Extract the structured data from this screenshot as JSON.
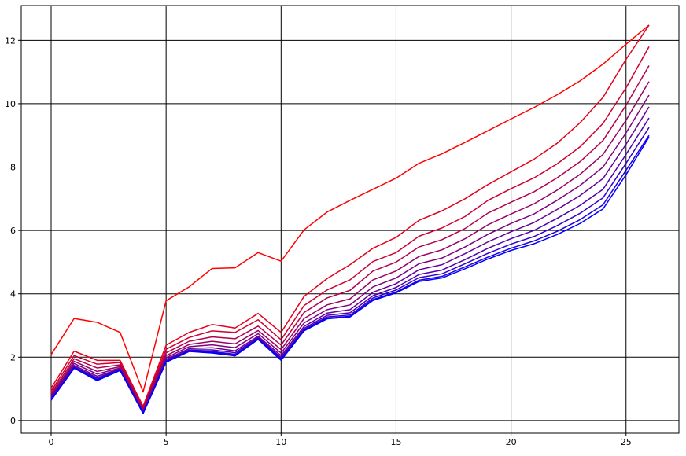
{
  "chart_data": {
    "type": "line",
    "title": "",
    "xlabel": "",
    "ylabel": "",
    "xlim": [
      -1.3,
      27.3
    ],
    "ylim": [
      -0.4,
      13.1
    ],
    "grid": true,
    "grid_color": "#000000",
    "xticks": [
      0,
      5,
      10,
      15,
      20,
      25
    ],
    "yticks": [
      0,
      2,
      4,
      6,
      8,
      10,
      12
    ],
    "x": [
      0,
      1,
      2,
      3,
      4,
      5,
      6,
      7,
      8,
      9,
      10,
      11,
      12,
      13,
      14,
      15,
      16,
      17,
      18,
      19,
      20,
      21,
      22,
      23,
      24,
      25,
      26
    ],
    "colors": [
      "#ff0000",
      "#e60019",
      "#cc0033",
      "#b3004c",
      "#990066",
      "#800080",
      "#660099",
      "#4d00b3",
      "#3300cc",
      "#1a00e6",
      "#0000ff"
    ],
    "series": [
      {
        "values": [
          2.08,
          3.22,
          3.1,
          2.78,
          0.9,
          3.78,
          4.22,
          4.8,
          4.82,
          5.3,
          5.03,
          6.02,
          6.58,
          6.95,
          7.3,
          7.65,
          8.12,
          8.42,
          8.78,
          9.15,
          9.52,
          9.88,
          10.28,
          10.72,
          11.25,
          11.88,
          12.48
        ]
      },
      {
        "values": [
          1.02,
          2.19,
          1.9,
          1.9,
          0.45,
          2.38,
          2.78,
          3.03,
          2.92,
          3.38,
          2.78,
          3.92,
          4.48,
          4.92,
          5.44,
          5.78,
          6.32,
          6.62,
          7.0,
          7.45,
          7.85,
          8.25,
          8.75,
          9.4,
          10.2,
          11.4,
          12.48
        ]
      },
      {
        "values": [
          0.93,
          2.05,
          1.78,
          1.83,
          0.4,
          2.25,
          2.62,
          2.83,
          2.78,
          3.18,
          2.55,
          3.63,
          4.12,
          4.44,
          5.02,
          5.3,
          5.82,
          6.08,
          6.44,
          6.95,
          7.32,
          7.66,
          8.1,
          8.64,
          9.38,
          10.5,
          11.8
        ]
      },
      {
        "values": [
          0.86,
          1.95,
          1.66,
          1.76,
          0.36,
          2.14,
          2.5,
          2.64,
          2.58,
          2.98,
          2.38,
          3.41,
          3.87,
          4.11,
          4.72,
          5.0,
          5.48,
          5.71,
          6.06,
          6.55,
          6.89,
          7.22,
          7.66,
          8.17,
          8.84,
          9.95,
          11.2
        ]
      },
      {
        "values": [
          0.8,
          1.87,
          1.55,
          1.7,
          0.32,
          2.05,
          2.4,
          2.5,
          2.42,
          2.84,
          2.24,
          3.22,
          3.65,
          3.84,
          4.44,
          4.72,
          5.18,
          5.39,
          5.74,
          6.18,
          6.52,
          6.84,
          7.27,
          7.77,
          8.4,
          9.48,
          10.7
        ]
      },
      {
        "values": [
          0.76,
          1.8,
          1.47,
          1.66,
          0.29,
          1.98,
          2.33,
          2.39,
          2.3,
          2.74,
          2.13,
          3.08,
          3.5,
          3.65,
          4.22,
          4.5,
          4.95,
          5.13,
          5.48,
          5.88,
          6.22,
          6.52,
          6.95,
          7.42,
          8.0,
          9.08,
          10.27
        ]
      },
      {
        "values": [
          0.72,
          1.74,
          1.4,
          1.63,
          0.27,
          1.93,
          2.27,
          2.3,
          2.2,
          2.66,
          2.05,
          2.97,
          3.39,
          3.5,
          4.05,
          4.32,
          4.76,
          4.92,
          5.27,
          5.64,
          5.96,
          6.25,
          6.66,
          7.1,
          7.64,
          8.72,
          9.9
        ]
      },
      {
        "values": [
          0.7,
          1.7,
          1.35,
          1.61,
          0.26,
          1.89,
          2.23,
          2.23,
          2.14,
          2.62,
          1.99,
          2.91,
          3.32,
          3.4,
          3.94,
          4.2,
          4.61,
          4.75,
          5.08,
          5.44,
          5.74,
          6.0,
          6.38,
          6.79,
          7.3,
          8.4,
          9.55
        ]
      },
      {
        "values": [
          0.67,
          1.68,
          1.31,
          1.6,
          0.24,
          1.87,
          2.21,
          2.18,
          2.09,
          2.59,
          1.95,
          2.87,
          3.27,
          3.33,
          3.87,
          4.12,
          4.51,
          4.63,
          4.95,
          5.28,
          5.57,
          5.81,
          6.15,
          6.54,
          7.03,
          8.12,
          9.25
        ]
      },
      {
        "values": [
          0.65,
          1.66,
          1.28,
          1.59,
          0.23,
          1.85,
          2.19,
          2.15,
          2.06,
          2.57,
          1.92,
          2.84,
          3.23,
          3.29,
          3.82,
          4.06,
          4.43,
          4.55,
          4.85,
          5.16,
          5.44,
          5.67,
          5.97,
          6.34,
          6.81,
          7.9,
          9.0
        ]
      },
      {
        "values": [
          0.64,
          1.65,
          1.26,
          1.58,
          0.22,
          1.84,
          2.18,
          2.13,
          2.04,
          2.56,
          1.9,
          2.83,
          3.21,
          3.27,
          3.79,
          4.03,
          4.39,
          4.5,
          4.79,
          5.1,
          5.37,
          5.58,
          5.87,
          6.22,
          6.68,
          7.76,
          8.95
        ]
      }
    ]
  }
}
